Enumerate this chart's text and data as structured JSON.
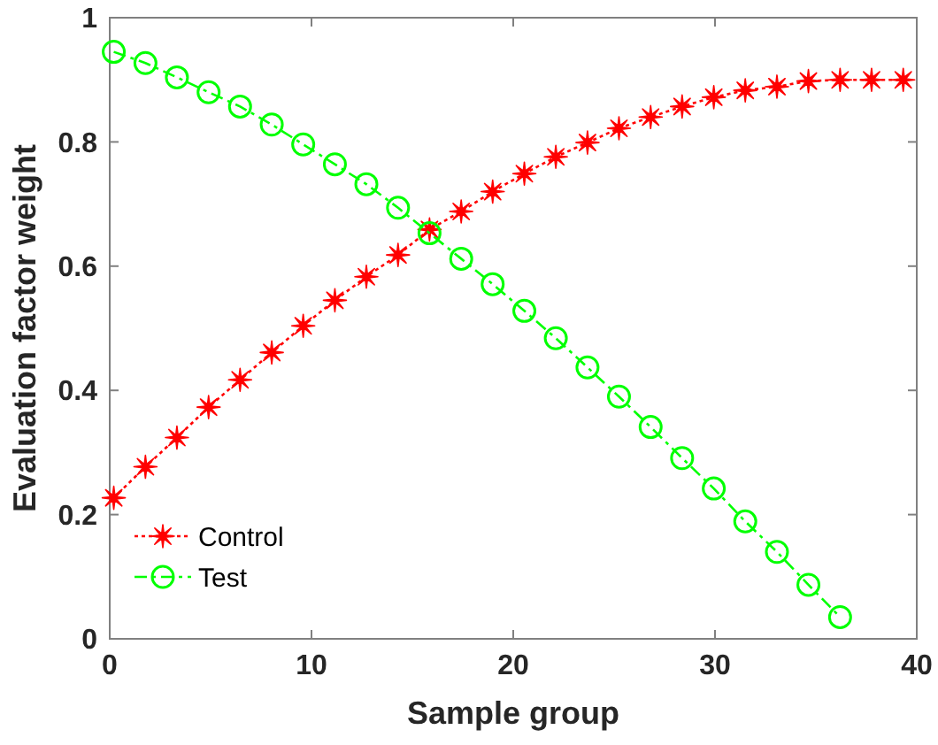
{
  "chart_data": {
    "type": "line",
    "xlabel": "Sample group",
    "ylabel": "Evaluation factor weight",
    "xlim": [
      0,
      40
    ],
    "ylim": [
      0,
      1
    ],
    "xticks": [
      0,
      10,
      20,
      30,
      40
    ],
    "yticks": [
      0,
      0.2,
      0.4,
      0.6,
      0.8,
      1
    ],
    "grid": false,
    "legend": "bottom left",
    "x": [
      0.2,
      1.77,
      3.33,
      4.9,
      6.46,
      8.03,
      9.59,
      11.16,
      12.72,
      14.29,
      15.85,
      17.42,
      18.98,
      20.55,
      22.11,
      23.68,
      25.24,
      26.81,
      28.37,
      29.94,
      31.5,
      33.07,
      34.63,
      36.2,
      37.76,
      39.33
    ],
    "series": [
      {
        "name": "Control",
        "color": "#ff0000",
        "marker": "star",
        "line_style": "dotted",
        "values": [
          0.227,
          0.277,
          0.324,
          0.373,
          0.417,
          0.461,
          0.504,
          0.545,
          0.583,
          0.618,
          0.659,
          0.688,
          0.72,
          0.749,
          0.776,
          0.799,
          0.822,
          0.84,
          0.857,
          0.872,
          0.883,
          0.889,
          0.898,
          0.9,
          0.9,
          0.9
        ]
      },
      {
        "name": "Test",
        "color": "#00ff00",
        "marker": "circle",
        "line_style": "dashed",
        "values": [
          0.945,
          0.927,
          0.904,
          0.88,
          0.857,
          0.828,
          0.796,
          0.764,
          0.732,
          0.694,
          0.653,
          0.612,
          0.571,
          0.528,
          0.484,
          0.437,
          0.39,
          0.341,
          0.291,
          0.242,
          0.189,
          0.14,
          0.087,
          0.035,
          null,
          null
        ]
      }
    ]
  }
}
